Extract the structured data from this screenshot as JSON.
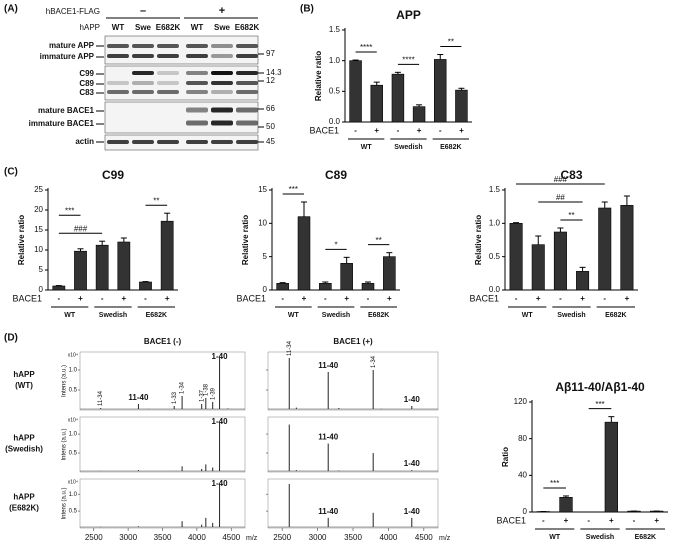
{
  "panels": {
    "a": "(A)",
    "b": "(B)",
    "c": "(C)",
    "d": "(D)"
  },
  "blot": {
    "construct": "hBACE1-FLAG",
    "conditions": [
      "–",
      "+"
    ],
    "row_label": "hAPP",
    "lanes": [
      "WT",
      "Swe",
      "E682K",
      "WT",
      "Swe",
      "E682K"
    ],
    "sections": [
      {
        "labels": [
          "mature APP",
          "immature APP"
        ],
        "markers": [
          97
        ]
      },
      {
        "labels": [
          "C99",
          "C89",
          "C83"
        ],
        "markers": [
          14.3,
          12
        ]
      },
      {
        "labels": [
          "mature BACE1",
          "immature BACE1"
        ],
        "markers": [
          66,
          50
        ]
      },
      {
        "labels": [
          "actin"
        ],
        "markers": [
          45
        ]
      }
    ]
  },
  "chart_data": [
    {
      "type": "bar",
      "title": "APP",
      "y_label": "Relative ratio",
      "row_label": "BACE1",
      "categories": [
        "-",
        "+",
        "-",
        "+",
        "-",
        "+"
      ],
      "groups": [
        "WT",
        "Swedish",
        "E682K"
      ],
      "values": [
        1.0,
        0.6,
        0.78,
        0.25,
        1.02,
        0.52
      ],
      "errors": [
        0.01,
        0.05,
        0.03,
        0.03,
        0.08,
        0.03
      ],
      "color": "#333333",
      "ylim": [
        0,
        1.5
      ],
      "yticks": [
        {
          "value": 0,
          "label": "0.0"
        },
        {
          "value": 0.5,
          "label": "0.5"
        },
        {
          "value": 1,
          "label": "1.0"
        },
        {
          "value": 1.5,
          "label": "1.5"
        }
      ],
      "annotations": [
        {
          "text": "****",
          "between": [
            0,
            1
          ]
        },
        {
          "text": "****",
          "between": [
            2,
            3
          ]
        },
        {
          "text": "**",
          "between": [
            4,
            5
          ]
        }
      ]
    },
    {
      "type": "bar",
      "title": "C99",
      "y_label": "Relative ratio",
      "row_label": "BACE1",
      "categories": [
        "-",
        "+",
        "-",
        "+",
        "-",
        "+"
      ],
      "groups": [
        "WT",
        "Swedish",
        "E682K"
      ],
      "values": [
        1.0,
        9.7,
        11.2,
        12.0,
        2.0,
        17.2
      ],
      "errors": [
        0.1,
        0.6,
        1.0,
        1.0,
        0.1,
        2.0
      ],
      "color": "#333333",
      "ylim": [
        0,
        25
      ],
      "yticks": [
        0,
        5,
        10,
        15,
        20,
        25
      ],
      "annotations": [
        {
          "text": "###",
          "between": [
            0,
            2
          ]
        },
        {
          "text": "***",
          "between": [
            0,
            1
          ]
        },
        {
          "text": "**",
          "between": [
            4,
            5
          ]
        }
      ]
    },
    {
      "type": "bar",
      "title": "C89",
      "y_label": "Relative ratio",
      "row_label": "BACE1",
      "categories": [
        "-",
        "+",
        "-",
        "+",
        "-",
        "+"
      ],
      "groups": [
        "WT",
        "Swedish",
        "E682K"
      ],
      "values": [
        1.0,
        11.0,
        1.0,
        4.0,
        1.0,
        5.0
      ],
      "errors": [
        0.1,
        2.2,
        0.2,
        0.9,
        0.2,
        0.6
      ],
      "color": "#333333",
      "ylim": [
        0,
        15
      ],
      "yticks": [
        0,
        5,
        10,
        15
      ],
      "annotations": [
        {
          "text": "***",
          "between": [
            0,
            1
          ]
        },
        {
          "text": "*",
          "between": [
            2,
            3
          ]
        },
        {
          "text": "**",
          "between": [
            4,
            5
          ]
        }
      ]
    },
    {
      "type": "bar",
      "title": "C83",
      "y_label": "Relative ratio",
      "row_label": "BACE1",
      "categories": [
        "-",
        "+",
        "-",
        "+",
        "-",
        "+"
      ],
      "groups": [
        "WT",
        "Swedish",
        "E682K"
      ],
      "values": [
        1.0,
        0.68,
        0.87,
        0.28,
        1.23,
        1.27
      ],
      "errors": [
        0.01,
        0.13,
        0.06,
        0.06,
        0.09,
        0.14
      ],
      "color": "#333333",
      "ylim": [
        0,
        1.5
      ],
      "yticks": [
        {
          "value": 0,
          "label": "0.0"
        },
        {
          "value": 0.5,
          "label": "0.5"
        },
        {
          "value": 1,
          "label": "1.0"
        },
        {
          "value": 1.5,
          "label": "1.5"
        }
      ],
      "annotations": [
        {
          "text": "**",
          "between": [
            2,
            3
          ]
        },
        {
          "text": "##",
          "between": [
            1,
            3
          ]
        },
        {
          "text": "###",
          "between": [
            0,
            4
          ]
        }
      ]
    },
    {
      "type": "bar",
      "title": "Aβ11-40/Aβ1-40",
      "y_label": "Ratio",
      "row_label": "BACE1",
      "categories": [
        "-",
        "+",
        "-",
        "+",
        "-",
        "+"
      ],
      "groups": [
        "WT",
        "Swedish",
        "E682K"
      ],
      "values": [
        0.5,
        16,
        0,
        98,
        1,
        1
      ],
      "errors": [
        0,
        1.5,
        0,
        6,
        0,
        0
      ],
      "color": "#333333",
      "ylim": [
        0,
        120
      ],
      "yticks": [
        0,
        40,
        80,
        120
      ],
      "annotations": [
        {
          "text": "***",
          "between": [
            0,
            1
          ]
        },
        {
          "text": "***",
          "between": [
            2,
            3
          ]
        }
      ]
    }
  ],
  "mass_spec": {
    "columns": [
      "BACE1 (-)",
      "BACE1 (+)"
    ],
    "x_label": "m/z",
    "y_label": "Intens (a.u.)",
    "y_unit": "x10⁴",
    "xlim": [
      2300,
      4700
    ],
    "xticks": [
      2500,
      3000,
      3500,
      4000,
      4500
    ],
    "ylim": [
      0,
      1.45
    ],
    "yticks": [
      {
        "value": 0.5,
        "label": "0.5"
      },
      {
        "value": 1,
        "label": "1.0"
      }
    ],
    "rows": [
      {
        "label": [
          "hAPP",
          "(WT)"
        ],
        "spectra": [
          {
            "x": [
              2600,
              3150,
              3300,
              3670,
              3785,
              4070,
              4130,
              4230,
              4330,
              4450
            ],
            "y": [
              0.05,
              0.15,
              0.03,
              0.1,
              0.35,
              0.15,
              0.3,
              0.2,
              1.3,
              0.04
            ],
            "labels": [
              "11-34",
              "11-40",
              null,
              "1-33",
              "1-34",
              "1-37",
              "1-38",
              "1-39",
              "1-40",
              null
            ]
          },
          {
            "x": [
              2600,
              2700,
              3150,
              3300,
              3785,
              3900,
              4330
            ],
            "y": [
              1.3,
              0.06,
              0.95,
              0.05,
              1.0,
              0.03,
              0.1
            ],
            "labels": [
              "11-34",
              null,
              "11-40",
              null,
              "1-34",
              null,
              "1-40"
            ]
          }
        ]
      },
      {
        "label": [
          "hAPP",
          "(Swedish)"
        ],
        "spectra": [
          {
            "x": [
              2600,
              3150,
              3700,
              3785,
              4070,
              4130,
              4230,
              4330
            ],
            "y": [
              0.03,
              0.05,
              0.03,
              0.15,
              0.08,
              0.2,
              0.12,
              1.3
            ],
            "labels": [
              null,
              null,
              null,
              null,
              null,
              null,
              null,
              "1-40"
            ]
          },
          {
            "x": [
              2600,
              2700,
              3150,
              3300,
              3785,
              4330
            ],
            "y": [
              1.25,
              0.05,
              0.75,
              0.04,
              0.5,
              0.05
            ],
            "labels": [
              null,
              null,
              "11-40",
              null,
              null,
              "1-40"
            ]
          }
        ]
      },
      {
        "label": [
          "hAPP",
          "(E682K)"
        ],
        "spectra": [
          {
            "x": [
              2600,
              3150,
              3785,
              4070,
              4130,
              4230,
              4330
            ],
            "y": [
              0.04,
              0.05,
              0.2,
              0.1,
              0.3,
              0.15,
              1.3
            ],
            "labels": [
              null,
              null,
              null,
              null,
              null,
              null,
              "1-40"
            ]
          },
          {
            "x": [
              2600,
              3150,
              3785,
              4330
            ],
            "y": [
              1.3,
              0.3,
              0.45,
              0.3
            ],
            "labels": [
              null,
              "11-40",
              null,
              "1-40"
            ]
          }
        ]
      }
    ]
  }
}
